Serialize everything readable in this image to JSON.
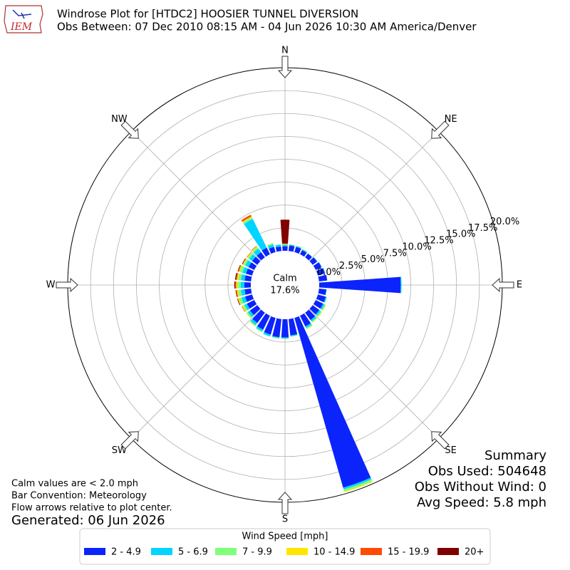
{
  "chart_data": {
    "type": "windrose",
    "title": "Windrose Plot for [HTDC2] HOOSIER TUNNEL DIVERSION",
    "subtitle": "Obs Between: 07 Dec 2010 08:15 AM - 04 Jun 2026 10:30 AM America/Denver",
    "logo_text": "IEM",
    "x": [
      0,
      10,
      20,
      30,
      40,
      50,
      60,
      70,
      80,
      90,
      100,
      110,
      120,
      130,
      140,
      150,
      160,
      170,
      180,
      190,
      200,
      210,
      220,
      230,
      240,
      250,
      260,
      270,
      280,
      290,
      300,
      310,
      320,
      330,
      340,
      350
    ],
    "xticks": [
      {
        "value": 0,
        "label": "N"
      },
      {
        "value": 45,
        "label": "NE"
      },
      {
        "value": 90,
        "label": "E"
      },
      {
        "value": 135,
        "label": "SE"
      },
      {
        "value": 180,
        "label": "S"
      },
      {
        "value": 225,
        "label": "SW"
      },
      {
        "value": 270,
        "label": "W"
      },
      {
        "value": 315,
        "label": "NW"
      }
    ],
    "ylim": [
      0,
      20
    ],
    "yticks": [
      {
        "value": 0,
        "label": "0.0%"
      },
      {
        "value": 2.5,
        "label": "2.5%"
      },
      {
        "value": 5,
        "label": "5.0%"
      },
      {
        "value": 7.5,
        "label": "7.5%"
      },
      {
        "value": 10,
        "label": "10.0%"
      },
      {
        "value": 12.5,
        "label": "12.5%"
      },
      {
        "value": 15,
        "label": "15.0%"
      },
      {
        "value": 17.5,
        "label": "17.5%"
      },
      {
        "value": 20,
        "label": "20.0%"
      }
    ],
    "grid": true,
    "calm_label": "Calm",
    "calm_value": 17.6,
    "calm_value_label": "17.6%",
    "legend_title": "Wind Speed [mph]",
    "legend_position": "bottom",
    "series": [
      {
        "name": "2 - 4.9",
        "color": "#0b24fb",
        "values": [
          0.5,
          0.6,
          0.6,
          0.5,
          0.5,
          0.6,
          0.7,
          0.8,
          0.9,
          8.9,
          0.8,
          0.9,
          0.9,
          0.9,
          1.0,
          1.3,
          19.3,
          1.8,
          2.0,
          2.0,
          1.9,
          1.7,
          1.4,
          1.0,
          0.9,
          0.8,
          0.7,
          0.7,
          0.7,
          0.7,
          0.7,
          0.7,
          0.7,
          0.8,
          0.6,
          0.5
        ]
      },
      {
        "name": "5 - 6.9",
        "color": "#00d5ff",
        "values": [
          0.15,
          0.1,
          0.1,
          0.1,
          0.05,
          0.05,
          0.05,
          0.05,
          0,
          0.1,
          0.05,
          0.1,
          0.2,
          0.2,
          0.2,
          0.2,
          0.2,
          0.1,
          0.1,
          0.1,
          0.2,
          0.2,
          0.3,
          0.3,
          0.3,
          0.4,
          0.4,
          0.4,
          0.4,
          0.4,
          0.4,
          0.4,
          0.5,
          3.5,
          0.3,
          0.2
        ]
      },
      {
        "name": "7 - 9.9",
        "color": "#7dff7a",
        "values": [
          0.05,
          0.05,
          0.05,
          0.05,
          0,
          0,
          0,
          0,
          0,
          0,
          0,
          0.05,
          0.1,
          0.15,
          0.1,
          0.1,
          0.2,
          0.05,
          0.05,
          0.05,
          0.05,
          0.1,
          0.1,
          0.15,
          0.2,
          0.3,
          0.3,
          0.35,
          0.3,
          0.3,
          0.2,
          0.2,
          0.2,
          0.2,
          0.1,
          0.05
        ]
      },
      {
        "name": "10 - 14.9",
        "color": "#ffe600",
        "values": [
          0.05,
          0,
          0,
          0,
          0,
          0,
          0,
          0,
          0,
          0,
          0,
          0,
          0.05,
          0.05,
          0.05,
          0.05,
          0.1,
          0,
          0,
          0,
          0,
          0,
          0.05,
          0.05,
          0.1,
          0.1,
          0.15,
          0.15,
          0.15,
          0.1,
          0.1,
          0.1,
          0.1,
          0.1,
          0.05,
          0
        ]
      },
      {
        "name": "15 - 19.9",
        "color": "#ff4a00",
        "values": [
          0.05,
          0,
          0,
          0,
          0,
          0,
          0,
          0,
          0,
          0,
          0,
          0,
          0,
          0,
          0,
          0,
          0,
          0,
          0,
          0,
          0,
          0,
          0,
          0,
          0.05,
          0.05,
          0.1,
          0.1,
          0.1,
          0.1,
          0.05,
          0.05,
          0.05,
          0.2,
          0,
          0
        ]
      },
      {
        "name": "20+",
        "color": "#800000",
        "values": [
          2.6,
          0,
          0,
          0,
          0,
          0,
          0,
          0,
          0,
          0,
          0,
          0,
          0,
          0,
          0,
          0,
          0,
          0,
          0,
          0,
          0,
          0,
          0,
          0,
          0,
          0.05,
          0.05,
          0.1,
          0.1,
          0.05,
          0.05,
          0,
          0,
          0,
          0,
          0
        ]
      }
    ],
    "notes": [
      "Calm values are < 2.0 mph",
      "Bar Convention: Meteorology",
      "Flow arrows relative to plot center."
    ],
    "generated": "Generated: 06 Jun 2026",
    "summary": [
      "Summary",
      "Obs Used: 504648",
      "Obs Without Wind: 0",
      "Avg Speed: 5.8 mph"
    ]
  }
}
